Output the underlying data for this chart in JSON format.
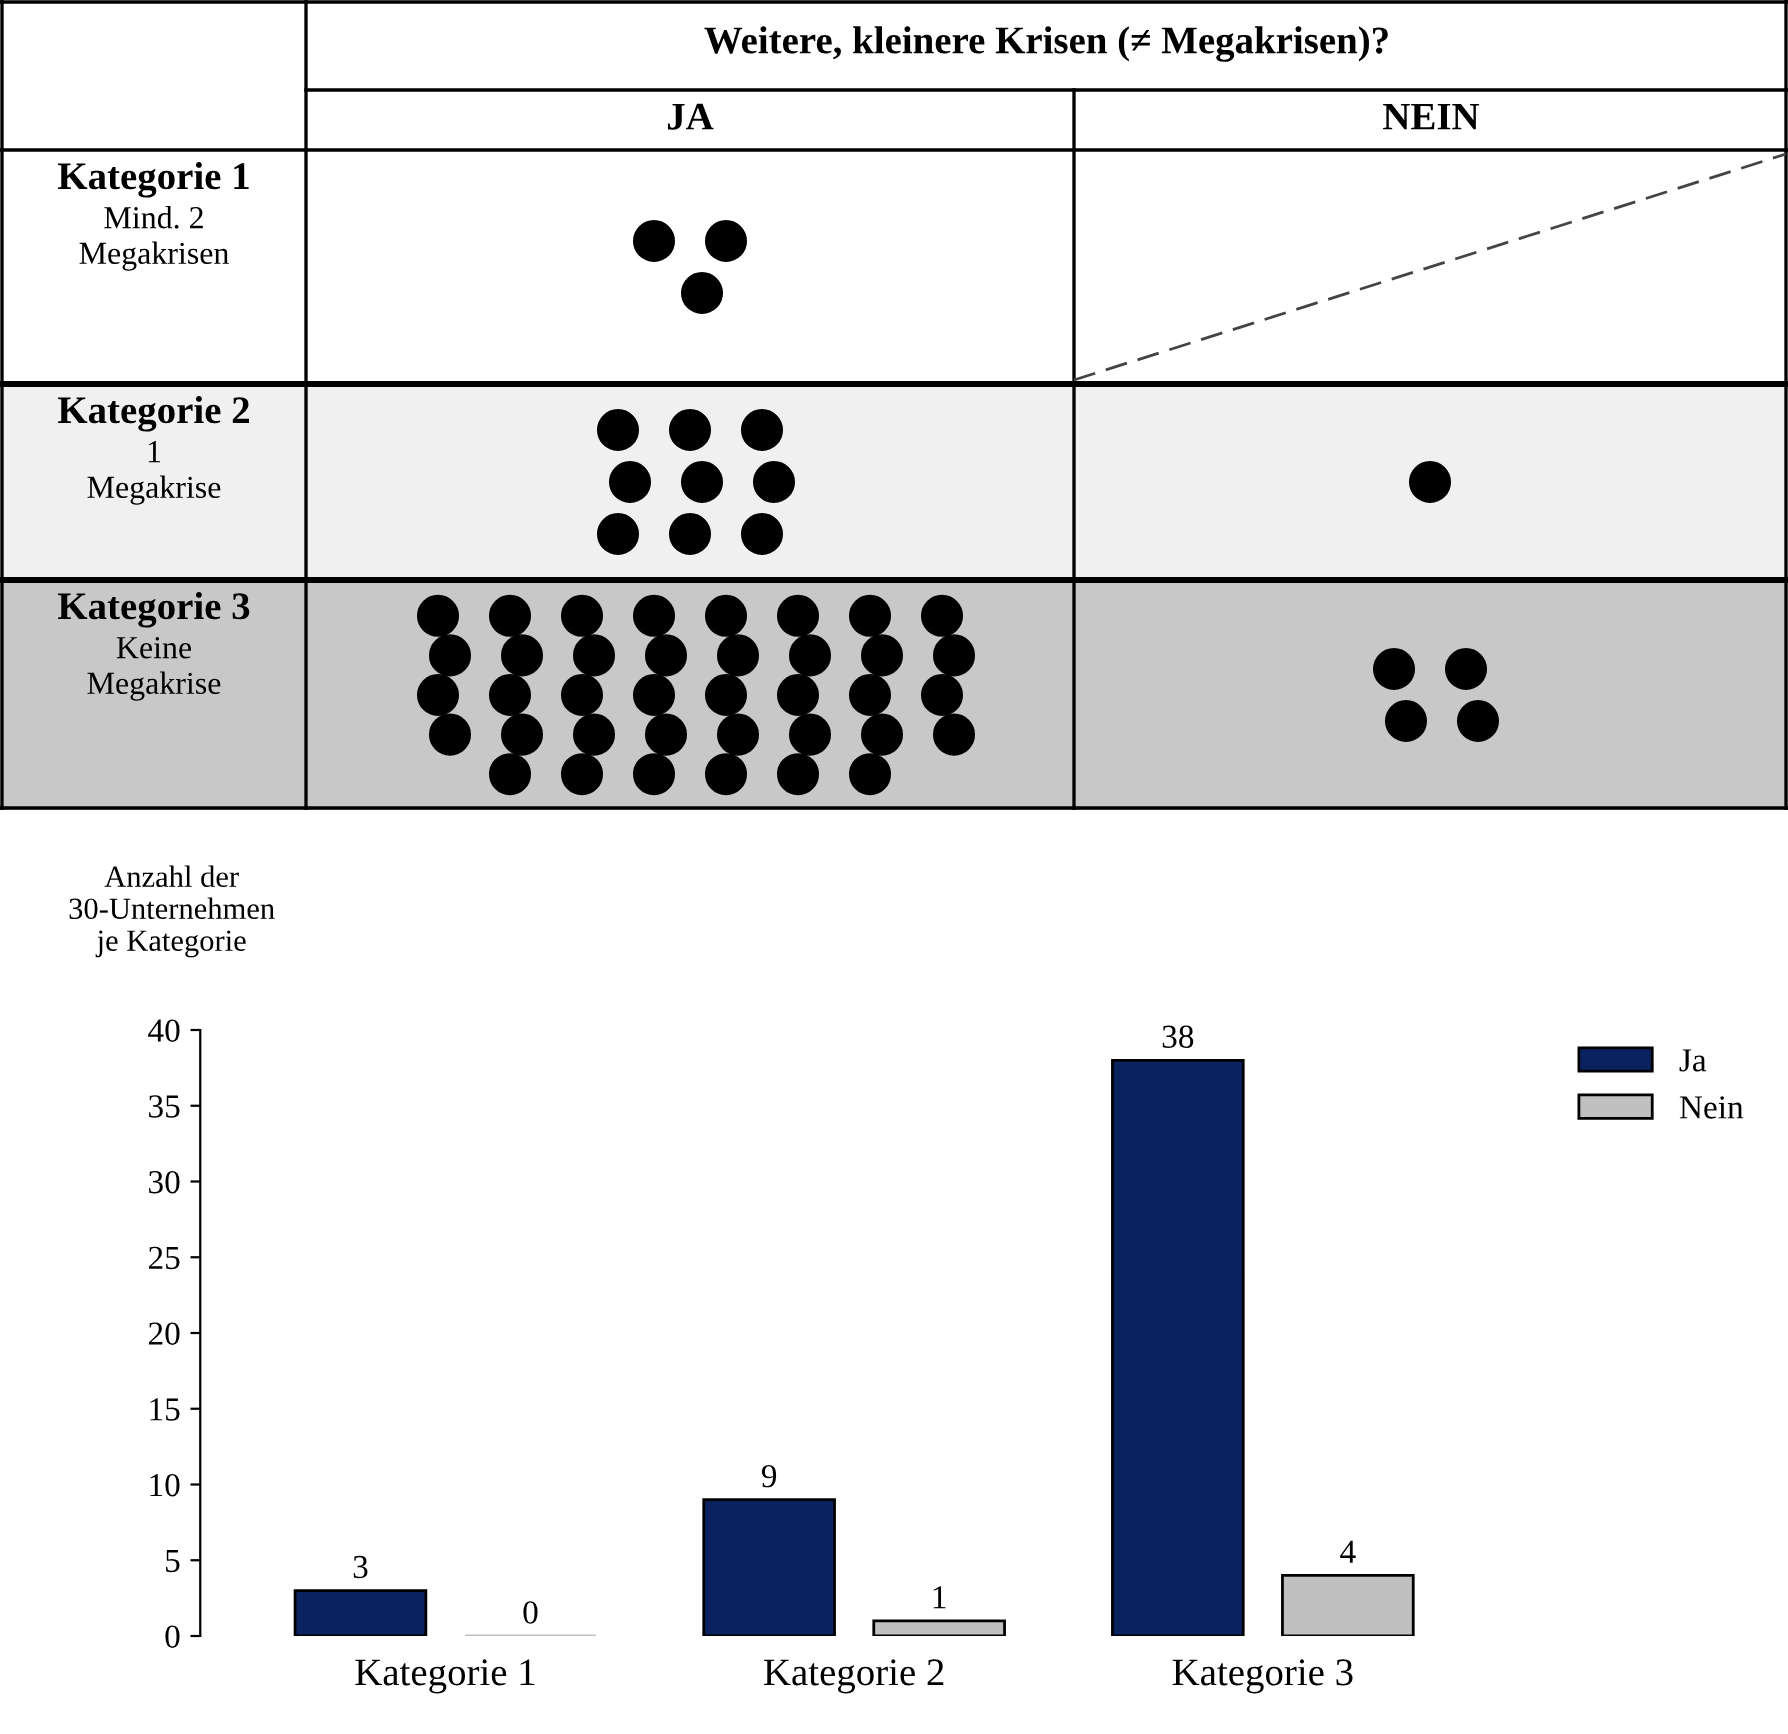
{
  "chart_data": [
    {
      "type": "other",
      "title": "Weitere, kleinere Krisen (≠ Megakrisen)?",
      "annotations": [
        "JA",
        "NEIN",
        "Kategorie 1",
        "Mind. 2\nMegakrisen",
        "Kategorie 2",
        "1\nMegakrise",
        "Kategorie 3",
        "Keine\nMegakrise"
      ]
    },
    {
      "type": "bar",
      "ylabel": "Anzahl der\n30-Unternehmen\nje Kategorie",
      "categories": [
        "Kategorie 1",
        "Kategorie 2",
        "Kategorie 3"
      ],
      "series": [
        {
          "name": "Ja",
          "color": "#0b2260",
          "values": [
            3,
            9,
            38
          ]
        },
        {
          "name": "Nein",
          "color": "#c0c0c0",
          "values": [
            0,
            1,
            4
          ]
        }
      ],
      "ylim": [
        0,
        40
      ],
      "yticks": [
        0,
        5,
        10,
        15,
        20,
        25,
        30,
        35,
        40
      ],
      "data_labels": true,
      "legend": "top right",
      "grid": false
    }
  ]
}
